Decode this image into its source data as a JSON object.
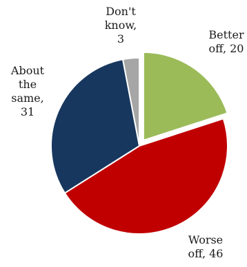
{
  "chart_data": {
    "type": "pie",
    "title": "",
    "legend": "none",
    "start_angle_deg": 0,
    "direction": "clockwise",
    "slices": [
      {
        "name": "Better off",
        "value": 20,
        "color": "#9bbb59",
        "exploded": true,
        "label_lines": [
          "Better",
          "off, 20"
        ]
      },
      {
        "name": "Worse off",
        "value": 46,
        "color": "#c00000",
        "exploded": false,
        "label_lines": [
          "Worse",
          "off, 46"
        ]
      },
      {
        "name": "About the same",
        "value": 31,
        "color": "#17375e",
        "exploded": false,
        "label_lines": [
          "About",
          "the",
          "same,",
          "31"
        ]
      },
      {
        "name": "Don't know",
        "value": 3,
        "color": "#a6a6a6",
        "exploded": false,
        "label_lines": [
          "Don't",
          "know,",
          "3"
        ]
      }
    ]
  }
}
